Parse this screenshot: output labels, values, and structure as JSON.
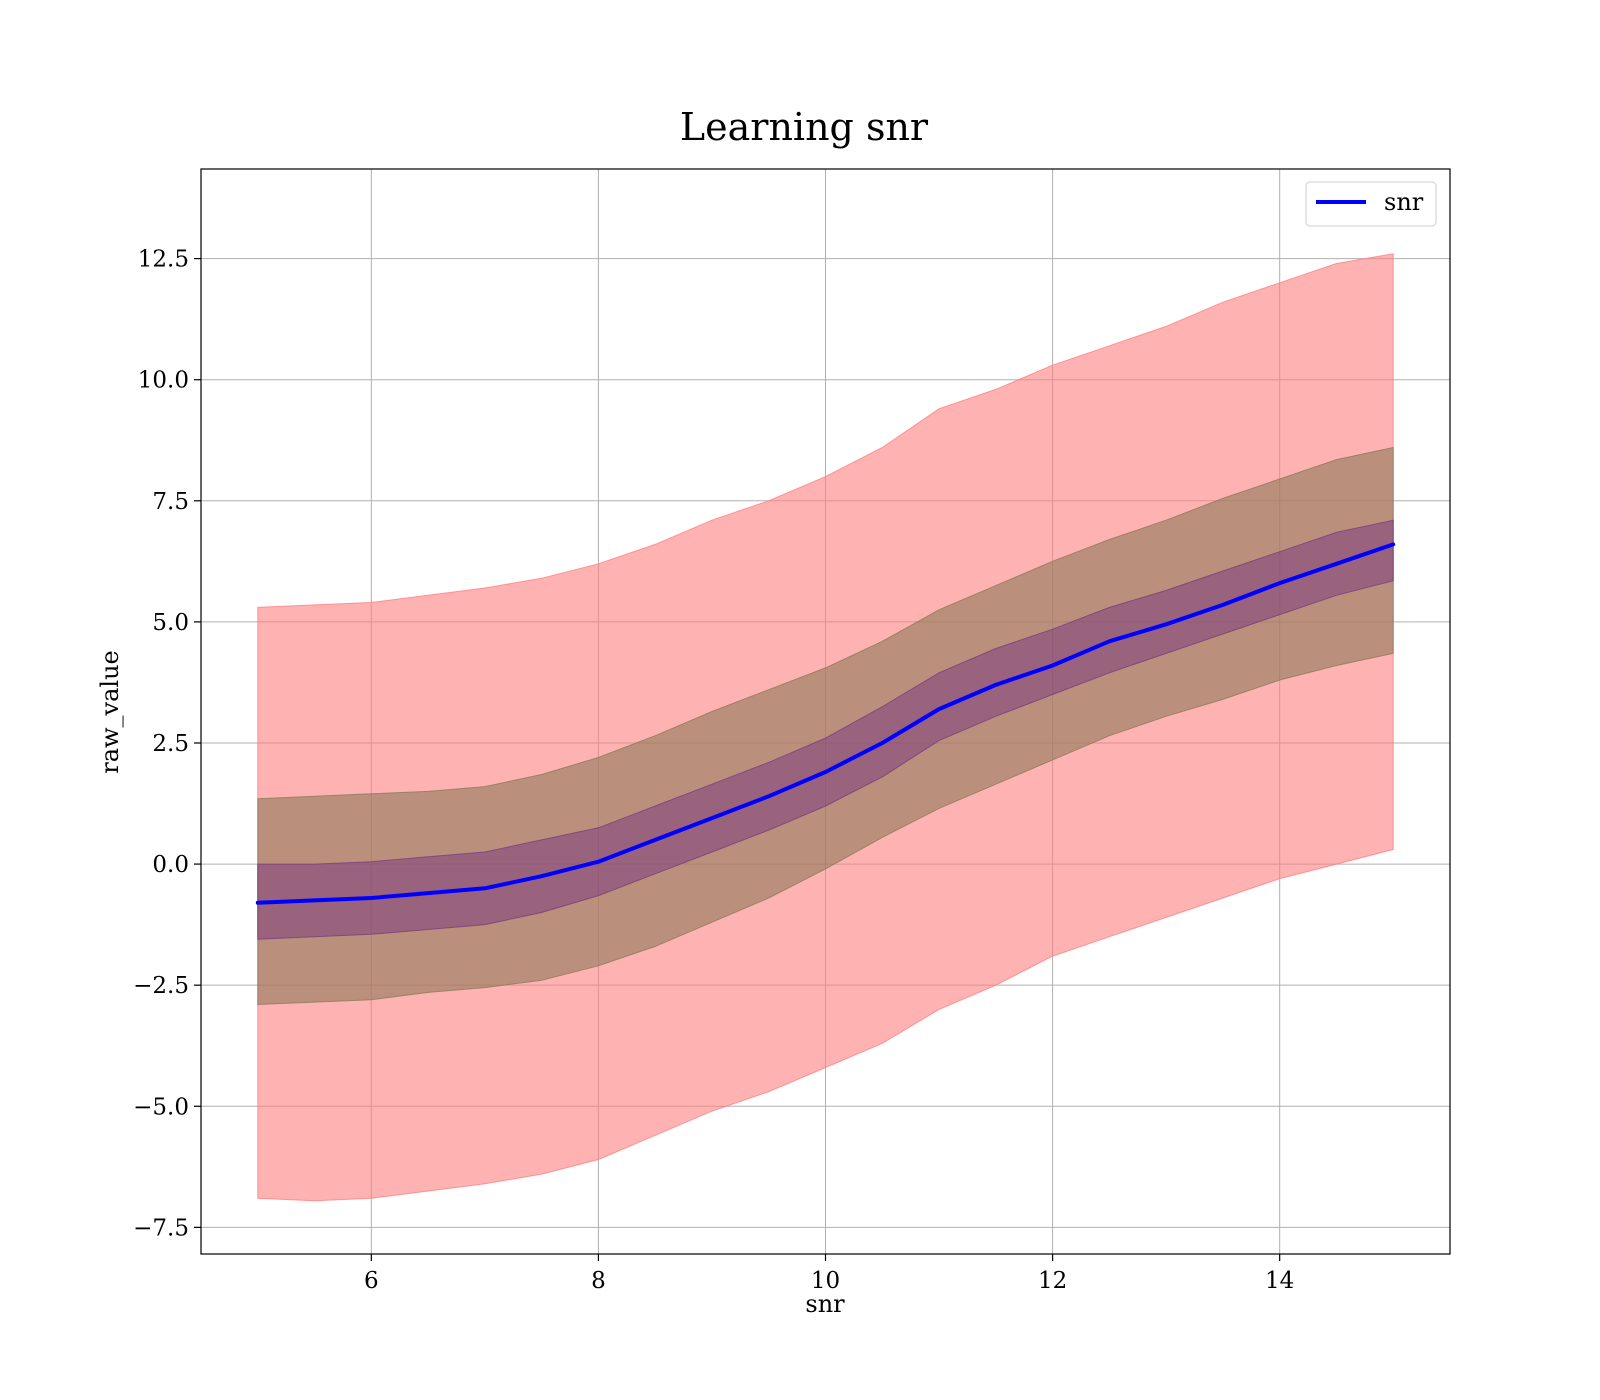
{
  "chart_data": {
    "type": "line",
    "title": "Learning snr",
    "xlabel": "snr",
    "ylabel": "raw_value",
    "xlim": [
      4.5,
      15.5
    ],
    "ylim": [
      -8.05,
      14.35
    ],
    "x_ticks": [
      6,
      8,
      10,
      12,
      14
    ],
    "x_tick_labels": [
      "6",
      "8",
      "10",
      "12",
      "14"
    ],
    "y_ticks": [
      -7.5,
      -5.0,
      -2.5,
      0.0,
      2.5,
      5.0,
      7.5,
      10.0,
      12.5
    ],
    "y_tick_labels": [
      "−7.5",
      "−5.0",
      "−2.5",
      "0.0",
      "2.5",
      "5.0",
      "7.5",
      "10.0",
      "12.5"
    ],
    "grid": true,
    "legend": {
      "position": "top-right",
      "entries": [
        "snr"
      ]
    },
    "colors": {
      "line": "#0000ff",
      "band_outer": "#ff7f7f",
      "band_middle": "#8c7a5a",
      "band_inner": "#7d3c7d"
    },
    "series": [
      {
        "name": "snr",
        "x": [
          5,
          5.5,
          6,
          6.5,
          7,
          7.5,
          8,
          8.5,
          9,
          9.5,
          10,
          10.5,
          11,
          11.5,
          12,
          12.5,
          13,
          13.5,
          14,
          14.5,
          15
        ],
        "y": [
          -0.8,
          -0.75,
          -0.7,
          -0.6,
          -0.5,
          -0.25,
          0.05,
          0.5,
          0.95,
          1.4,
          1.9,
          2.5,
          3.2,
          3.7,
          4.1,
          4.6,
          4.95,
          5.35,
          5.8,
          6.2,
          6.6
        ]
      }
    ],
    "bands": [
      {
        "level": "outer",
        "lower": [
          -6.9,
          -6.95,
          -6.9,
          -6.75,
          -6.6,
          -6.4,
          -6.1,
          -5.6,
          -5.1,
          -4.7,
          -4.2,
          -3.7,
          -3.0,
          -2.5,
          -1.9,
          -1.5,
          -1.1,
          -0.7,
          -0.3,
          0.0,
          0.3
        ],
        "upper": [
          5.3,
          5.35,
          5.4,
          5.55,
          5.7,
          5.9,
          6.2,
          6.6,
          7.1,
          7.5,
          8.0,
          8.6,
          9.4,
          9.8,
          10.3,
          10.7,
          11.1,
          11.6,
          12.0,
          12.4,
          12.6
        ]
      },
      {
        "level": "middle",
        "lower": [
          -2.9,
          -2.85,
          -2.8,
          -2.65,
          -2.55,
          -2.4,
          -2.1,
          -1.7,
          -1.2,
          -0.7,
          -0.1,
          0.55,
          1.15,
          1.65,
          2.15,
          2.65,
          3.05,
          3.4,
          3.8,
          4.1,
          4.35
        ],
        "upper": [
          1.35,
          1.4,
          1.45,
          1.5,
          1.6,
          1.85,
          2.2,
          2.65,
          3.15,
          3.6,
          4.05,
          4.6,
          5.25,
          5.75,
          6.25,
          6.7,
          7.1,
          7.55,
          7.95,
          8.35,
          8.6
        ]
      },
      {
        "level": "inner",
        "lower": [
          -1.55,
          -1.5,
          -1.45,
          -1.35,
          -1.25,
          -1.0,
          -0.65,
          -0.2,
          0.25,
          0.7,
          1.2,
          1.8,
          2.55,
          3.05,
          3.5,
          3.95,
          4.35,
          4.75,
          5.15,
          5.55,
          5.85
        ],
        "upper": [
          0.0,
          0.0,
          0.05,
          0.15,
          0.25,
          0.5,
          0.75,
          1.2,
          1.65,
          2.1,
          2.6,
          3.25,
          3.95,
          4.45,
          4.85,
          5.3,
          5.65,
          6.05,
          6.45,
          6.85,
          7.1
        ]
      }
    ]
  }
}
